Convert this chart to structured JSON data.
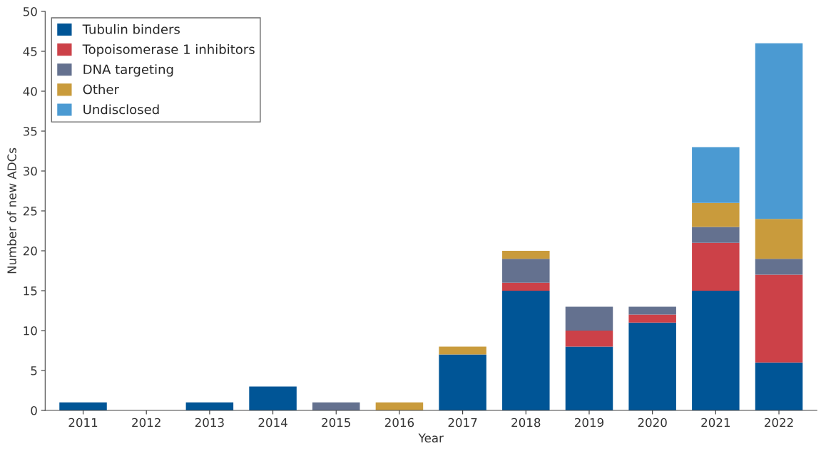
{
  "chart_data": {
    "type": "bar",
    "stacked": true,
    "xlabel": "Year",
    "ylabel": "Number of new ADCs",
    "categories": [
      "2011",
      "2012",
      "2013",
      "2014",
      "2015",
      "2016",
      "2017",
      "2018",
      "2019",
      "2020",
      "2021",
      "2022"
    ],
    "series": [
      {
        "name": "Tubulin binders",
        "color": "#005596",
        "values": [
          1,
          null,
          1,
          3,
          null,
          null,
          7,
          15,
          8,
          11,
          15,
          6
        ]
      },
      {
        "name": "Topoisomerase 1 inhibitors",
        "color": "#cc4148",
        "values": [
          null,
          null,
          null,
          null,
          null,
          null,
          null,
          1,
          2,
          1,
          6,
          11
        ]
      },
      {
        "name": "DNA targeting",
        "color": "#64718f",
        "values": [
          null,
          null,
          null,
          null,
          1,
          null,
          null,
          3,
          3,
          1,
          2,
          2
        ]
      },
      {
        "name": "Other",
        "color": "#c99b3c",
        "values": [
          null,
          null,
          null,
          null,
          null,
          1,
          1,
          1,
          null,
          null,
          3,
          5
        ]
      },
      {
        "name": "Undisclosed",
        "color": "#4b9ad2",
        "values": [
          null,
          null,
          null,
          null,
          null,
          null,
          null,
          null,
          null,
          null,
          7,
          22
        ]
      }
    ],
    "ylim": [
      0,
      50
    ],
    "yticks": [
      0,
      5,
      10,
      15,
      20,
      25,
      30,
      35,
      40,
      45,
      50
    ],
    "grid": false,
    "legend": "top left"
  }
}
